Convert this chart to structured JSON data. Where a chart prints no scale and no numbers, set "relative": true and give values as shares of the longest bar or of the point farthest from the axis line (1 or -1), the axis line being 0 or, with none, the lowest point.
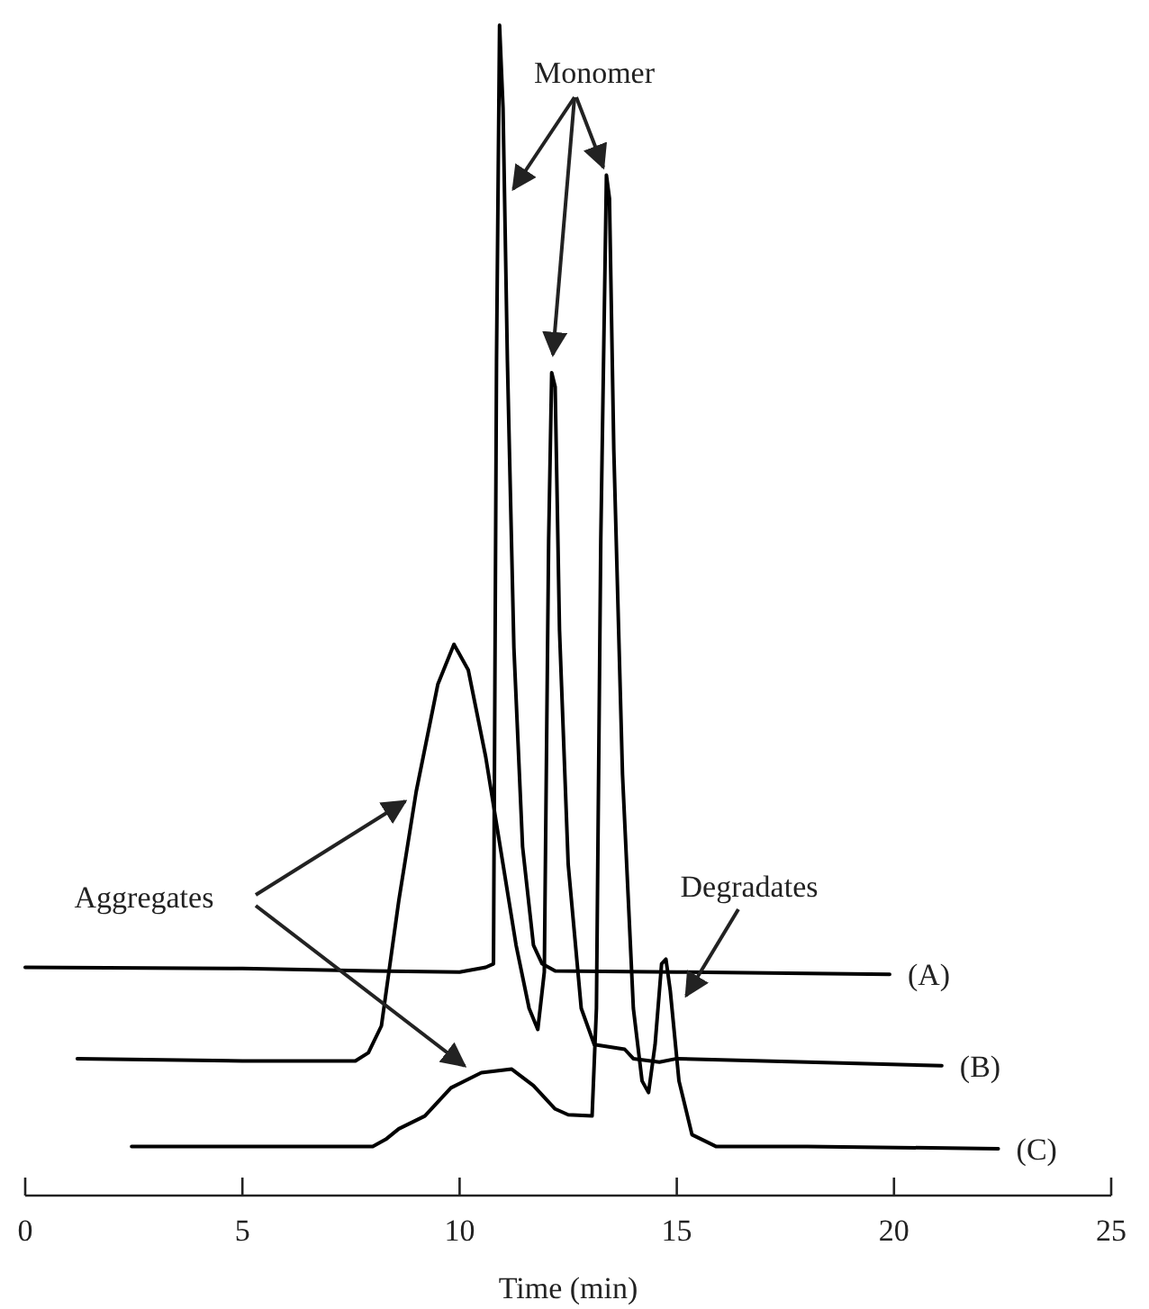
{
  "chart_data": {
    "type": "line",
    "relative": true,
    "xlabel": "Time (min)",
    "xlim": [
      0,
      25
    ],
    "xticks": [
      0,
      5,
      10,
      15,
      20,
      25
    ],
    "grid": false,
    "legend": false,
    "marker": "none",
    "line_style": "solid",
    "annotations": [
      "Monomer",
      "Aggregates",
      "Degradates"
    ],
    "series": [
      {
        "name": "(A)",
        "color": "#000000",
        "x": [
          0,
          5,
          8,
          10,
          10.6,
          10.78,
          10.85,
          10.92,
          11.0,
          11.1,
          11.25,
          11.45,
          11.7,
          11.9,
          12.2,
          15,
          19.9
        ],
        "values": [
          0.195,
          0.194,
          0.192,
          0.191,
          0.195,
          0.198,
          0.714,
          1.0,
          0.929,
          0.714,
          0.468,
          0.298,
          0.214,
          0.198,
          0.192,
          0.191,
          0.189
        ]
      },
      {
        "name": "(B)",
        "color": "#000000",
        "x": [
          1.2,
          5,
          7.6,
          7.9,
          8.2,
          8.6,
          9.0,
          9.5,
          9.87,
          10.2,
          10.6,
          11.0,
          11.3,
          11.6,
          11.8,
          11.95,
          12.05,
          12.12,
          12.2,
          12.3,
          12.5,
          12.8,
          13.1,
          13.8,
          14.0,
          14.6,
          15.0,
          18,
          21.1
        ],
        "values": [
          0.117,
          0.115,
          0.115,
          0.122,
          0.145,
          0.252,
          0.345,
          0.437,
          0.471,
          0.449,
          0.375,
          0.283,
          0.214,
          0.16,
          0.142,
          0.191,
          0.56,
          0.703,
          0.691,
          0.483,
          0.283,
          0.16,
          0.129,
          0.125,
          0.117,
          0.114,
          0.117,
          0.114,
          0.111
        ]
      },
      {
        "name": "(C)",
        "color": "#000000",
        "x": [
          2.45,
          8.0,
          8.3,
          8.6,
          9.2,
          9.8,
          10.5,
          11.2,
          11.7,
          12.2,
          12.5,
          13.05,
          13.15,
          13.25,
          13.38,
          13.45,
          13.55,
          13.75,
          14.0,
          14.2,
          14.35,
          14.5,
          14.65,
          14.75,
          14.85,
          15.05,
          15.35,
          15.9,
          18,
          22.4
        ],
        "values": [
          0.042,
          0.042,
          0.048,
          0.057,
          0.068,
          0.092,
          0.105,
          0.108,
          0.094,
          0.074,
          0.069,
          0.068,
          0.16,
          0.56,
          0.872,
          0.852,
          0.637,
          0.36,
          0.16,
          0.098,
          0.088,
          0.129,
          0.198,
          0.202,
          0.175,
          0.098,
          0.052,
          0.042,
          0.042,
          0.04
        ]
      }
    ]
  }
}
